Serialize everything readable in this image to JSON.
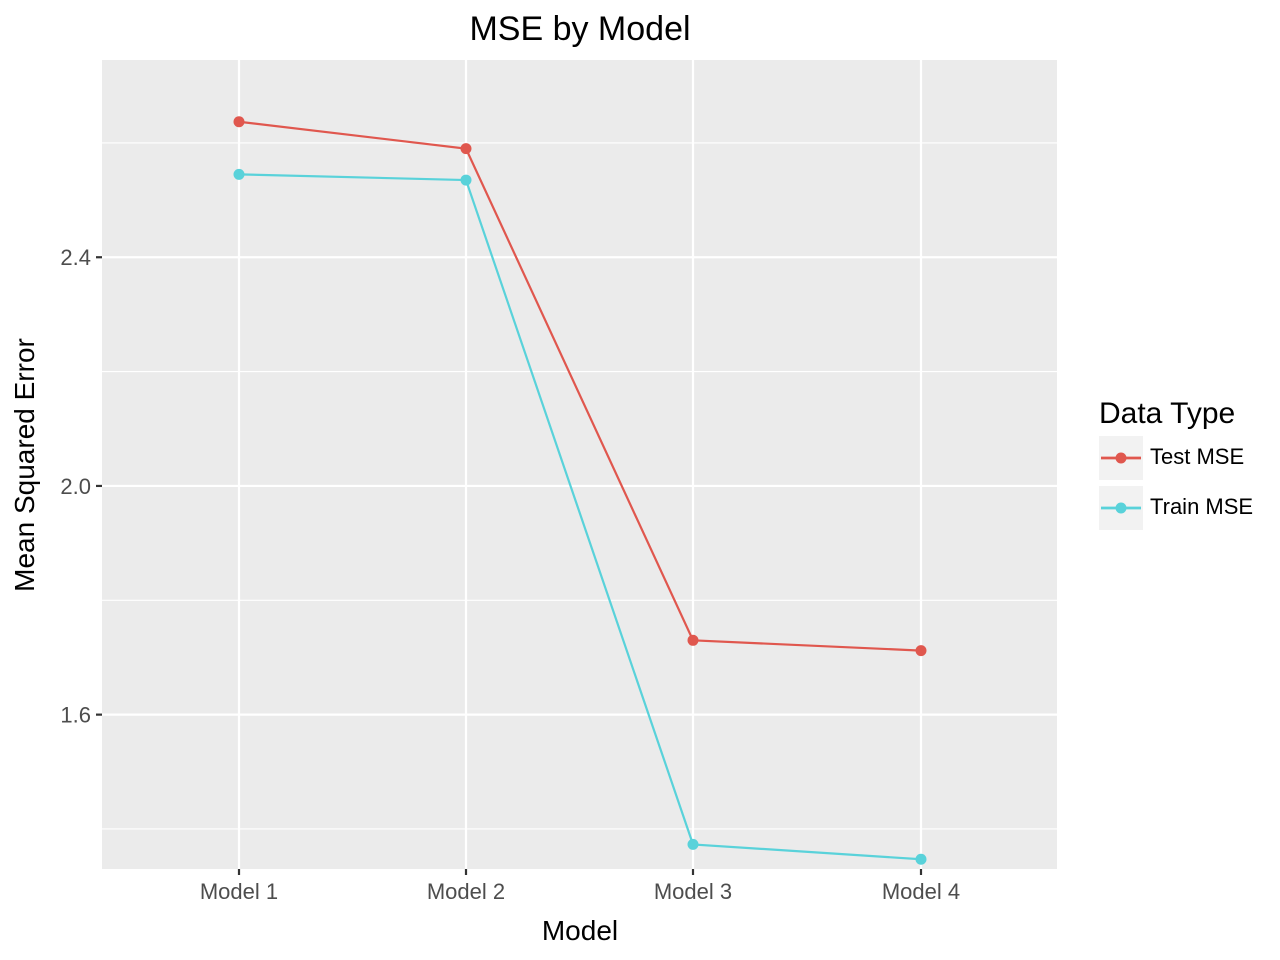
{
  "chart_data": {
    "type": "line",
    "title": "MSE by Model",
    "xlabel": "Model",
    "ylabel": "Mean Squared Error",
    "categories": [
      "Model 1",
      "Model 2",
      "Model 3",
      "Model 4"
    ],
    "ylim": [
      1.33,
      2.745
    ],
    "yticks": [
      1.6,
      2.0,
      2.4
    ],
    "ytick_labels": [
      "1.6",
      "2.0",
      "2.4"
    ],
    "yminor": [
      1.4,
      1.8,
      2.2,
      2.6
    ],
    "grid": true,
    "legend": {
      "title": "Data Type",
      "position": "right"
    },
    "series": [
      {
        "name": "Test MSE",
        "color": "#E0574E",
        "values": [
          2.637,
          2.59,
          1.73,
          1.712
        ]
      },
      {
        "name": "Train MSE",
        "color": "#59D2DA",
        "values": [
          2.545,
          2.535,
          1.373,
          1.347
        ]
      }
    ]
  }
}
